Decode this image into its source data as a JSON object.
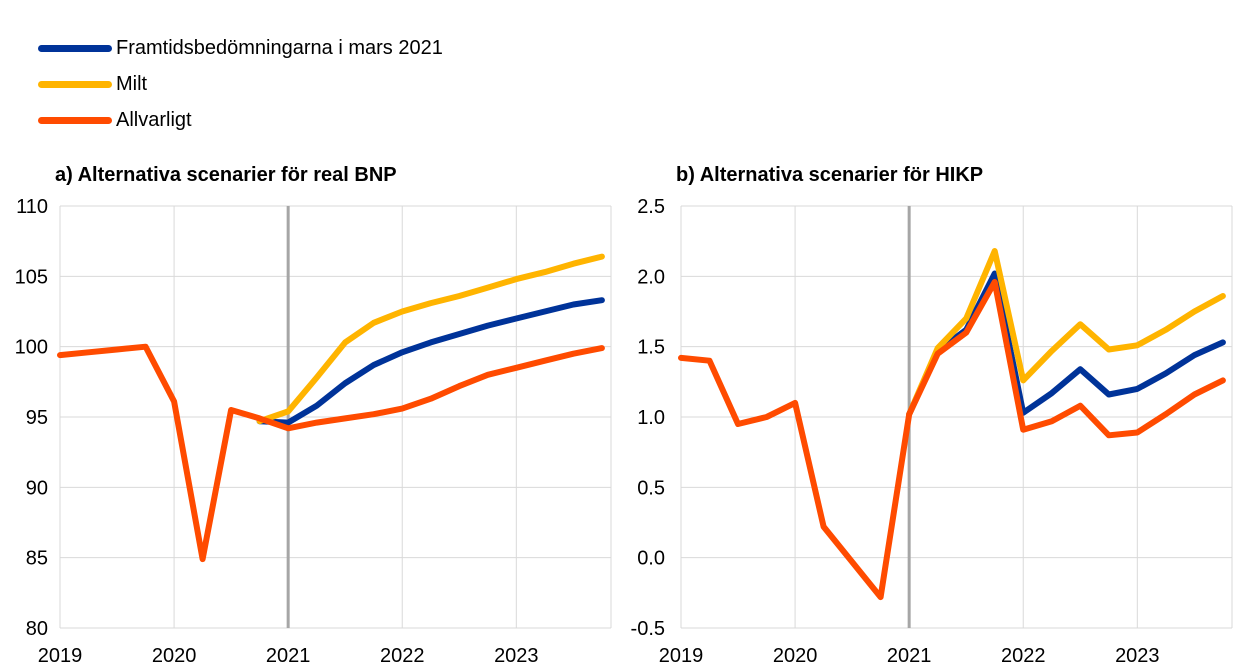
{
  "legend": [
    {
      "name": "Framtidsbedömningarna i mars 2021",
      "color": "#003399"
    },
    {
      "name": "Milt",
      "color": "#FFB400"
    },
    {
      "name": "Allvarligt",
      "color": "#FF4B00"
    }
  ],
  "chart_data": [
    {
      "type": "line",
      "title": "a) Alternativa scenarier för real BNP",
      "xlabel": "",
      "ylabel": "",
      "xlim": [
        2019.0,
        2023.83
      ],
      "ylim": [
        80,
        110
      ],
      "yticks": [
        "80",
        "85",
        "90",
        "95",
        "100",
        "105",
        "110"
      ],
      "xticks": [
        "2019",
        "2020",
        "2021",
        "2022",
        "2023"
      ],
      "vline": 2021.0,
      "grid": true,
      "series": [
        {
          "name": "Framtidsbedömningarna i mars 2021",
          "x": [
            2020.75,
            2021.0,
            2021.25,
            2021.5,
            2021.75,
            2022.0,
            2022.25,
            2022.5,
            2022.75,
            2023.0,
            2023.25,
            2023.5,
            2023.75
          ],
          "values": [
            94.7,
            94.6,
            95.8,
            97.4,
            98.7,
            99.6,
            100.3,
            100.9,
            101.5,
            102.0,
            102.5,
            103.0,
            103.3
          ]
        },
        {
          "name": "Milt",
          "x": [
            2020.75,
            2021.0,
            2021.25,
            2021.5,
            2021.75,
            2022.0,
            2022.25,
            2022.5,
            2022.75,
            2023.0,
            2023.25,
            2023.5,
            2023.75
          ],
          "values": [
            94.7,
            95.4,
            97.8,
            100.3,
            101.7,
            102.5,
            103.1,
            103.6,
            104.2,
            104.8,
            105.3,
            105.9,
            106.4
          ]
        },
        {
          "name": "Allvarligt",
          "x": [
            2019.0,
            2019.25,
            2019.5,
            2019.75,
            2020.0,
            2020.25,
            2020.5,
            2020.75,
            2021.0,
            2021.25,
            2021.5,
            2021.75,
            2022.0,
            2022.25,
            2022.5,
            2022.75,
            2023.0,
            2023.25,
            2023.5,
            2023.75
          ],
          "values": [
            99.4,
            99.6,
            99.8,
            100.0,
            96.1,
            84.9,
            95.5,
            94.9,
            94.2,
            94.6,
            94.9,
            95.2,
            95.6,
            96.3,
            97.2,
            98.0,
            98.5,
            99.0,
            99.5,
            99.9
          ]
        }
      ]
    },
    {
      "type": "line",
      "title": "b) Alternativa scenarier för HIKP",
      "xlabel": "",
      "ylabel": "",
      "xlim": [
        2019.0,
        2023.83
      ],
      "ylim": [
        -0.5,
        2.5
      ],
      "yticks": [
        "-0.5",
        "0.0",
        "0.5",
        "1.0",
        "1.5",
        "2.0",
        "2.5"
      ],
      "xticks": [
        "2019",
        "2020",
        "2021",
        "2022",
        "2023"
      ],
      "vline": 2021.0,
      "grid": true,
      "series": [
        {
          "name": "Framtidsbedömningarna i mars 2021",
          "x": [
            2021.0,
            2021.25,
            2021.5,
            2021.75,
            2022.0,
            2022.25,
            2022.5,
            2022.75,
            2023.0,
            2023.25,
            2023.5,
            2023.75
          ],
          "values": [
            1.02,
            1.47,
            1.62,
            2.02,
            1.03,
            1.17,
            1.34,
            1.16,
            1.2,
            1.31,
            1.44,
            1.53
          ]
        },
        {
          "name": "Milt",
          "x": [
            2021.0,
            2021.25,
            2021.5,
            2021.75,
            2022.0,
            2022.25,
            2022.5,
            2022.75,
            2023.0,
            2023.25,
            2023.5,
            2023.75
          ],
          "values": [
            1.02,
            1.49,
            1.7,
            2.18,
            1.26,
            1.47,
            1.66,
            1.48,
            1.51,
            1.62,
            1.75,
            1.86
          ]
        },
        {
          "name": "Allvarligt",
          "x": [
            2019.0,
            2019.25,
            2019.5,
            2019.75,
            2020.0,
            2020.25,
            2020.5,
            2020.75,
            2021.0,
            2021.25,
            2021.5,
            2021.75,
            2022.0,
            2022.25,
            2022.5,
            2022.75,
            2023.0,
            2023.25,
            2023.5,
            2023.75
          ],
          "values": [
            1.42,
            1.4,
            0.95,
            1.0,
            1.1,
            0.22,
            -0.03,
            -0.28,
            1.02,
            1.45,
            1.6,
            1.96,
            0.91,
            0.97,
            1.08,
            0.87,
            0.89,
            1.02,
            1.16,
            1.26
          ]
        }
      ]
    }
  ]
}
